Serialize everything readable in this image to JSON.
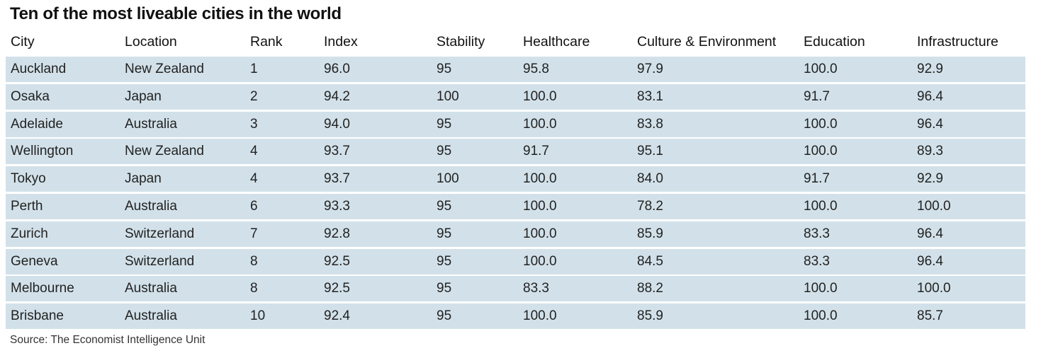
{
  "chart_data": {
    "type": "table",
    "title": "Ten of the most liveable cities in the world",
    "columns": [
      "City",
      "Location",
      "Rank",
      "Index",
      "Stability",
      "Healthcare",
      "Culture & Environment",
      "Education",
      "Infrastructure"
    ],
    "rows": [
      [
        "Auckland",
        "New Zealand",
        "1",
        "96.0",
        "95",
        "95.8",
        "97.9",
        "100.0",
        "92.9"
      ],
      [
        "Osaka",
        "Japan",
        "2",
        "94.2",
        "100",
        "100.0",
        "83.1",
        "91.7",
        "96.4"
      ],
      [
        "Adelaide",
        "Australia",
        "3",
        "94.0",
        "95",
        "100.0",
        "83.8",
        "100.0",
        "96.4"
      ],
      [
        "Wellington",
        "New Zealand",
        "4",
        "93.7",
        "95",
        "91.7",
        "95.1",
        "100.0",
        "89.3"
      ],
      [
        "Tokyo",
        "Japan",
        "4",
        "93.7",
        "100",
        "100.0",
        "84.0",
        "91.7",
        "92.9"
      ],
      [
        "Perth",
        "Australia",
        "6",
        "93.3",
        "95",
        "100.0",
        "78.2",
        "100.0",
        "100.0"
      ],
      [
        "Zurich",
        "Switzerland",
        "7",
        "92.8",
        "95",
        "100.0",
        "85.9",
        "83.3",
        "96.4"
      ],
      [
        "Geneva",
        "Switzerland",
        "8",
        "92.5",
        "95",
        "100.0",
        "84.5",
        "83.3",
        "96.4"
      ],
      [
        "Melbourne",
        "Australia",
        "8",
        "92.5",
        "95",
        "83.3",
        "88.2",
        "100.0",
        "100.0"
      ],
      [
        "Brisbane",
        "Australia",
        "10",
        "92.4",
        "95",
        "100.0",
        "85.9",
        "100.0",
        "85.7"
      ]
    ],
    "source": "Source: The Economist Intelligence Unit",
    "colors": {
      "row_background": "#d2e1e9",
      "text": "#222222"
    }
  }
}
